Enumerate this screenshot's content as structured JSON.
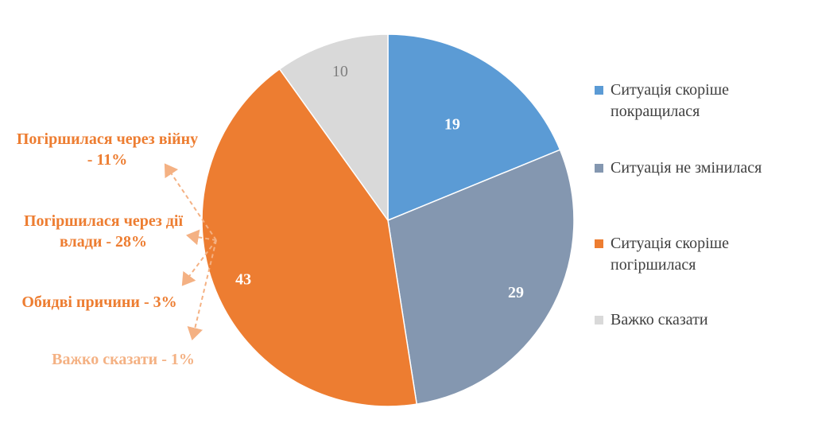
{
  "chart_data": {
    "type": "pie",
    "title": "",
    "categories": [
      "Ситуація скоріше покращилася",
      "Ситуація не змінилася",
      "Ситуація скоріше погіршилася",
      "Важко сказати"
    ],
    "values": [
      19,
      29,
      43,
      10
    ],
    "data_labels": [
      "19",
      "29",
      "43",
      "10"
    ],
    "colors": [
      "#5B9BD5",
      "#8497B0",
      "#ED7D31",
      "#D9D9D9"
    ],
    "label_colors": [
      "#ffffff",
      "#ffffff",
      "#ffffff",
      "#7F7F7F"
    ],
    "start_angle_deg": 0,
    "direction": "clockwise",
    "legend_position": "right"
  },
  "legend": {
    "items": [
      {
        "label": "Ситуація скоріше покращилася",
        "color": "#5B9BD5"
      },
      {
        "label": "Ситуація не змінилася",
        "color": "#8497B0"
      },
      {
        "label": "Ситуація скоріше погіршилася",
        "color": "#ED7D31"
      },
      {
        "label": "Важко сказати",
        "color": "#D9D9D9"
      }
    ]
  },
  "annotations": {
    "items": [
      {
        "text": "Погіршилася через війну - 11%",
        "color": "#ED7D31"
      },
      {
        "text": "Погіршилася через дії влади - 28%",
        "color": "#ED7D31"
      },
      {
        "text": "Обидві причини - 3%",
        "color": "#ED7D31"
      },
      {
        "text": "Важко сказати - 1%",
        "color": "#F4B183"
      }
    ],
    "arrow_color": "#F4B183"
  }
}
